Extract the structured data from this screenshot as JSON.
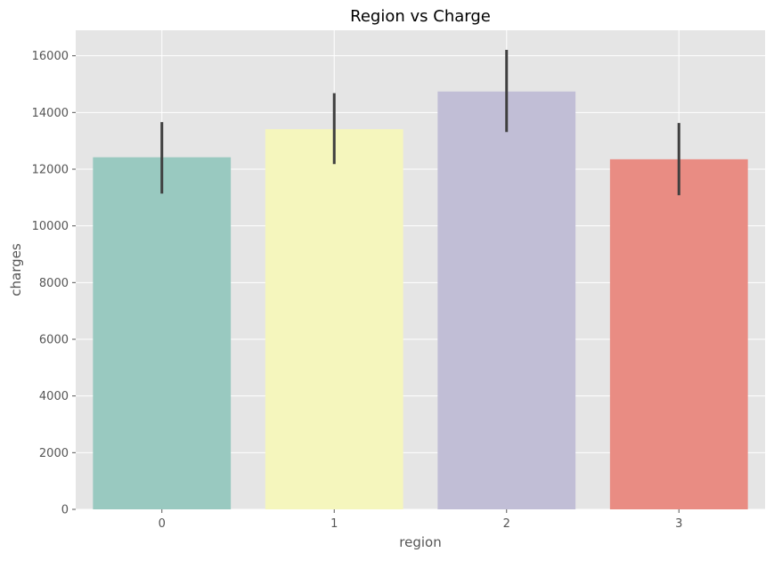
{
  "chart_data": {
    "type": "bar",
    "title": "Region vs Charge",
    "xlabel": "region",
    "ylabel": "charges",
    "categories": [
      "0",
      "1",
      "2",
      "3"
    ],
    "values": [
      12420,
      13410,
      14740,
      12350
    ],
    "error_bars": [
      {
        "low": 11140,
        "high": 13660
      },
      {
        "low": 12180,
        "high": 14680
      },
      {
        "low": 13310,
        "high": 16210
      },
      {
        "low": 11080,
        "high": 13630
      }
    ],
    "colors": [
      "#99c9c0",
      "#f5f6bd",
      "#c1bed6",
      "#e98c83"
    ],
    "error_bar_color": "#3f3f3f",
    "background_color": "#e5e5e5",
    "grid_color": "#ffffff",
    "grid": true,
    "ylim": [
      0,
      16900
    ],
    "yticks": [
      0,
      2000,
      4000,
      6000,
      8000,
      10000,
      12000,
      14000,
      16000
    ]
  }
}
